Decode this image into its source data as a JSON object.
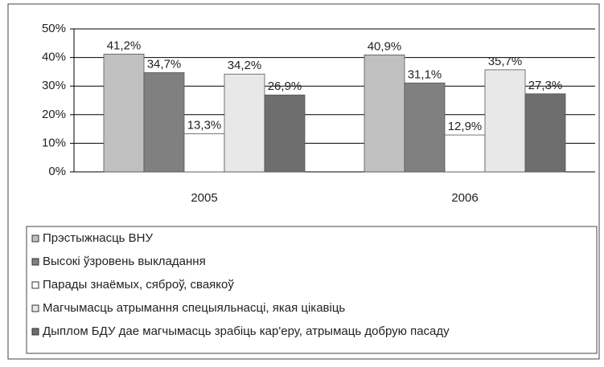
{
  "chart_data": {
    "type": "bar",
    "categories": [
      "2005",
      "2006"
    ],
    "series": [
      {
        "name": "Прэстыжнасць ВНУ",
        "color": "#c0c0c0",
        "values": [
          41.2,
          40.9
        ],
        "value_labels": [
          "41,2%",
          "40,9%"
        ]
      },
      {
        "name": "Высокі ўзровень выкладання",
        "color": "#808080",
        "values": [
          34.7,
          31.1
        ],
        "value_labels": [
          "34,7%",
          "31,1%"
        ]
      },
      {
        "name": "Парады знаёмых, сяброў, сваякоў",
        "color": "#ffffff",
        "values": [
          13.3,
          12.9
        ],
        "value_labels": [
          "13,3%",
          "12,9%"
        ]
      },
      {
        "name": "Магчымасць атрымання спецыяльнасці, якая цікавіць",
        "color": "#e8e8e8",
        "values": [
          34.2,
          35.7
        ],
        "value_labels": [
          "34,2%",
          "35,7%"
        ]
      },
      {
        "name": "Дыплом БДУ дае магчымасць зрабіць кар'еру, атрымаць добрую пасаду",
        "color": "#6e6e6e",
        "values": [
          26.9,
          27.3
        ],
        "value_labels": [
          "26,9%",
          "27,3%"
        ]
      }
    ],
    "ylim": [
      0,
      50
    ],
    "yticks": [
      {
        "value": 0,
        "label": "0%"
      },
      {
        "value": 10,
        "label": "10%"
      },
      {
        "value": 20,
        "label": "20%"
      },
      {
        "value": 30,
        "label": "30%"
      },
      {
        "value": 40,
        "label": "40%"
      },
      {
        "value": 50,
        "label": "50%"
      }
    ],
    "grid": true,
    "legend": "bottom"
  }
}
